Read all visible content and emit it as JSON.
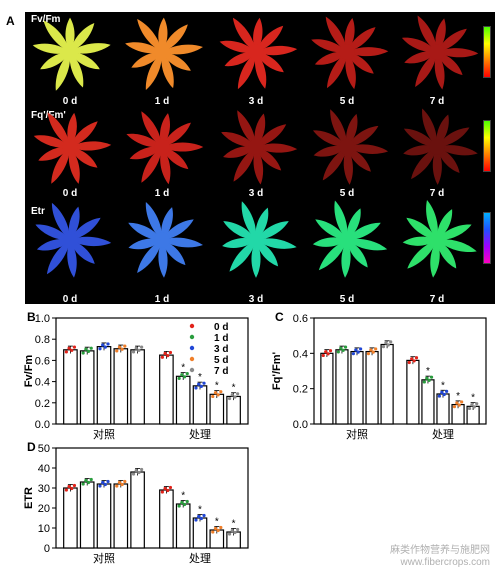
{
  "panel_labels": {
    "a": "A",
    "b": "B",
    "c": "C",
    "d": "D"
  },
  "imaging": {
    "rows": [
      {
        "title": "Fv/Fm",
        "colors": [
          "#dbe84a",
          "#f08a2a",
          "#d8261e",
          "#b51c17",
          "#a81916"
        ]
      },
      {
        "title": "Fq'/Fm'",
        "colors": [
          "#d32a1e",
          "#c8221b",
          "#951612",
          "#7d1410",
          "#6a110e"
        ]
      },
      {
        "title": "Etr",
        "colors": [
          "#3050d8",
          "#3d78e6",
          "#22d8a8",
          "#28e07c",
          "#2ee06a"
        ]
      }
    ],
    "days": [
      "0 d",
      "1 d",
      "3 d",
      "5 d",
      "7 d"
    ],
    "colorbars": [
      {
        "stops": [
          "#4cff00",
          "#ffff00",
          "#ff8000",
          "#ff0000"
        ]
      },
      {
        "stops": [
          "#4cff00",
          "#ffff00",
          "#ff8000",
          "#ff0000"
        ]
      },
      {
        "stops": [
          "#00b0ff",
          "#2050ff",
          "#a000ff",
          "#ff00c0"
        ]
      }
    ]
  },
  "chart_data": [
    {
      "panel": "B",
      "type": "bar",
      "ylabel": "Fv/Fm",
      "ylim": [
        0,
        1.0
      ],
      "yticks": [
        "0.0",
        "0.2",
        "0.4",
        "0.6",
        "0.8",
        "1.0"
      ],
      "categories": [
        "对照",
        "处理"
      ],
      "series": [
        {
          "name": "0 d",
          "color": "#e2231a",
          "values": [
            0.7,
            0.65
          ]
        },
        {
          "name": "1 d",
          "color": "#2a9d3e",
          "values": [
            0.69,
            0.45
          ]
        },
        {
          "name": "3 d",
          "color": "#2147d6",
          "values": [
            0.73,
            0.36
          ]
        },
        {
          "name": "5 d",
          "color": "#f07f2a",
          "values": [
            0.71,
            0.28
          ]
        },
        {
          "name": "7 d",
          "color": "#8a8a8a",
          "values": [
            0.7,
            0.26
          ]
        }
      ],
      "significance": [
        "",
        "*",
        "*",
        "*",
        "*"
      ],
      "legend_position": "top-right"
    },
    {
      "panel": "C",
      "type": "bar",
      "ylabel": "Fq'/Fm'",
      "ylim": [
        0,
        0.6
      ],
      "yticks": [
        "0.0",
        "0.2",
        "0.4",
        "0.6"
      ],
      "categories": [
        "对照",
        "处理"
      ],
      "series": [
        {
          "name": "0 d",
          "color": "#e2231a",
          "values": [
            0.4,
            0.36
          ]
        },
        {
          "name": "1 d",
          "color": "#2a9d3e",
          "values": [
            0.42,
            0.25
          ]
        },
        {
          "name": "3 d",
          "color": "#2147d6",
          "values": [
            0.41,
            0.17
          ]
        },
        {
          "name": "5 d",
          "color": "#f07f2a",
          "values": [
            0.41,
            0.11
          ]
        },
        {
          "name": "7 d",
          "color": "#8a8a8a",
          "values": [
            0.45,
            0.1
          ]
        }
      ],
      "significance": [
        "",
        "*",
        "*",
        "*",
        "*"
      ]
    },
    {
      "panel": "D",
      "type": "bar",
      "ylabel": "ETR",
      "ylim": [
        0,
        50
      ],
      "yticks": [
        "0",
        "10",
        "20",
        "30",
        "40",
        "50"
      ],
      "categories": [
        "对照",
        "处理"
      ],
      "series": [
        {
          "name": "0 d",
          "color": "#e2231a",
          "values": [
            30,
            29
          ]
        },
        {
          "name": "1 d",
          "color": "#2a9d3e",
          "values": [
            33,
            22
          ]
        },
        {
          "name": "3 d",
          "color": "#2147d6",
          "values": [
            32,
            15
          ]
        },
        {
          "name": "5 d",
          "color": "#f07f2a",
          "values": [
            32,
            9
          ]
        },
        {
          "name": "7 d",
          "color": "#8a8a8a",
          "values": [
            38,
            8
          ]
        }
      ],
      "significance": [
        "",
        "*",
        "*",
        "*",
        "*"
      ]
    }
  ],
  "watermark": {
    "line1": "麻类作物营养与施肥网",
    "line2": "www.fibercrops.com"
  }
}
